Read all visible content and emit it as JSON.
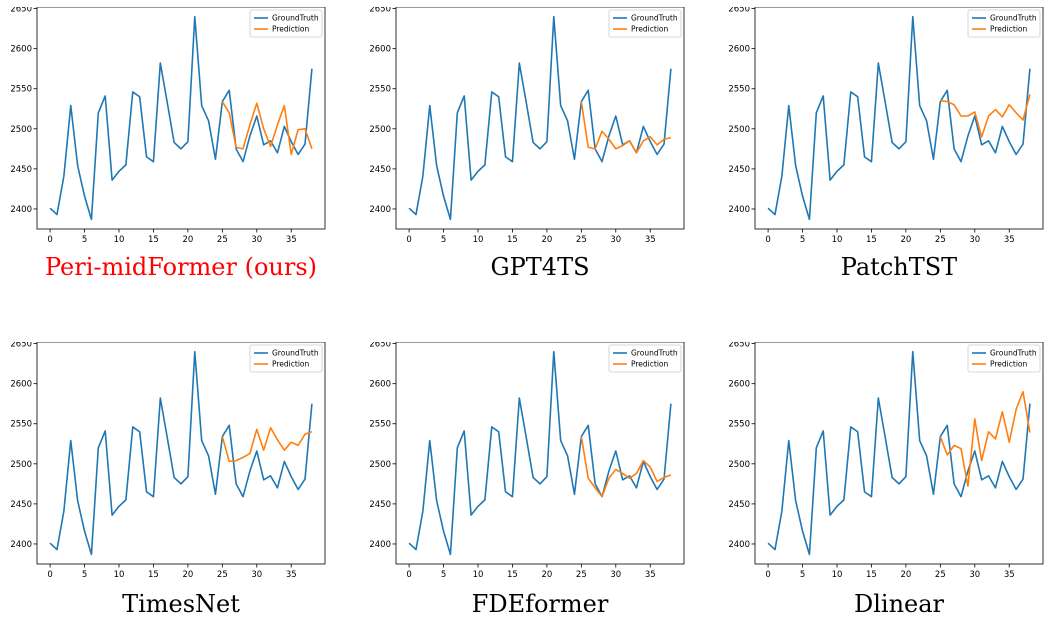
{
  "colors": {
    "ground_truth": "#1f77b4",
    "prediction": "#ff7f0e",
    "highlight_caption": "#ff0000",
    "caption": "#000000"
  },
  "chart_data": [
    {
      "type": "line",
      "title": "Peri-midFormer (ours)",
      "title_color": "#ff0000",
      "xticks": [
        0,
        5,
        10,
        15,
        20,
        25,
        30,
        35
      ],
      "yticks": [
        2400,
        2450,
        2500,
        2550,
        2600,
        2650
      ],
      "xlim": [
        -1.9,
        39.9
      ],
      "ylim": [
        2375,
        2652
      ],
      "grid": false,
      "legend": "top-right",
      "series": [
        {
          "name": "GroundTruth",
          "x": [
            0,
            1,
            2,
            3,
            4,
            5,
            6,
            7,
            8,
            9,
            10,
            11,
            12,
            13,
            14,
            15,
            16,
            17,
            18,
            19,
            20,
            21,
            22,
            23,
            24,
            25,
            26,
            27,
            28,
            29,
            30,
            31,
            32,
            33,
            34,
            35,
            36,
            37,
            38
          ],
          "y": [
            2401,
            2393,
            2441,
            2529,
            2454,
            2416,
            2387,
            2520,
            2541,
            2436,
            2447,
            2455,
            2546,
            2540,
            2465,
            2459,
            2582,
            2533,
            2483,
            2475,
            2484,
            2640,
            2529,
            2510,
            2462,
            2534,
            2548,
            2475,
            2459,
            2491,
            2516,
            2480,
            2485,
            2470,
            2503,
            2484,
            2468,
            2481,
            2575
          ]
        },
        {
          "name": "Prediction",
          "x": [
            25,
            26,
            27,
            28,
            29,
            30,
            31,
            32,
            33,
            34,
            35,
            36,
            37,
            38
          ],
          "y": [
            2534,
            2520,
            2477,
            2475,
            2505,
            2532,
            2500,
            2478,
            2505,
            2529,
            2468,
            2499,
            2500,
            2475
          ]
        }
      ]
    },
    {
      "type": "line",
      "title": "GPT4TS",
      "title_color": "#000000",
      "xticks": [
        0,
        5,
        10,
        15,
        20,
        25,
        30,
        35
      ],
      "yticks": [
        2400,
        2450,
        2500,
        2550,
        2600,
        2650
      ],
      "xlim": [
        -1.9,
        39.9
      ],
      "ylim": [
        2375,
        2652
      ],
      "grid": false,
      "legend": "top-right",
      "series": [
        {
          "name": "GroundTruth",
          "x": [
            0,
            1,
            2,
            3,
            4,
            5,
            6,
            7,
            8,
            9,
            10,
            11,
            12,
            13,
            14,
            15,
            16,
            17,
            18,
            19,
            20,
            21,
            22,
            23,
            24,
            25,
            26,
            27,
            28,
            29,
            30,
            31,
            32,
            33,
            34,
            35,
            36,
            37,
            38
          ],
          "y": [
            2401,
            2393,
            2441,
            2529,
            2454,
            2416,
            2387,
            2520,
            2541,
            2436,
            2447,
            2455,
            2546,
            2540,
            2465,
            2459,
            2582,
            2533,
            2483,
            2475,
            2484,
            2640,
            2529,
            2510,
            2462,
            2534,
            2548,
            2475,
            2459,
            2491,
            2516,
            2480,
            2485,
            2470,
            2503,
            2484,
            2468,
            2481,
            2575
          ]
        },
        {
          "name": "Prediction",
          "x": [
            25,
            26,
            27,
            28,
            29,
            30,
            31,
            32,
            33,
            34,
            35,
            36,
            37,
            38
          ],
          "y": [
            2534,
            2477,
            2475,
            2497,
            2487,
            2475,
            2479,
            2485,
            2470,
            2485,
            2490,
            2480,
            2487,
            2489
          ]
        }
      ]
    },
    {
      "type": "line",
      "title": "PatchTST",
      "title_color": "#000000",
      "xticks": [
        0,
        5,
        10,
        15,
        20,
        25,
        30,
        35
      ],
      "yticks": [
        2400,
        2450,
        2500,
        2550,
        2600,
        2650
      ],
      "xlim": [
        -1.9,
        39.9
      ],
      "ylim": [
        2375,
        2652
      ],
      "grid": false,
      "legend": "top-right",
      "series": [
        {
          "name": "GroundTruth",
          "x": [
            0,
            1,
            2,
            3,
            4,
            5,
            6,
            7,
            8,
            9,
            10,
            11,
            12,
            13,
            14,
            15,
            16,
            17,
            18,
            19,
            20,
            21,
            22,
            23,
            24,
            25,
            26,
            27,
            28,
            29,
            30,
            31,
            32,
            33,
            34,
            35,
            36,
            37,
            38
          ],
          "y": [
            2401,
            2393,
            2441,
            2529,
            2454,
            2416,
            2387,
            2520,
            2541,
            2436,
            2447,
            2455,
            2546,
            2540,
            2465,
            2459,
            2582,
            2533,
            2483,
            2475,
            2484,
            2640,
            2529,
            2510,
            2462,
            2534,
            2548,
            2475,
            2459,
            2491,
            2516,
            2480,
            2485,
            2470,
            2503,
            2484,
            2468,
            2481,
            2575
          ]
        },
        {
          "name": "Prediction",
          "x": [
            25,
            26,
            27,
            28,
            29,
            30,
            31,
            32,
            33,
            34,
            35,
            36,
            37,
            38
          ],
          "y": [
            2535,
            2534,
            2530,
            2516,
            2516,
            2521,
            2490,
            2516,
            2524,
            2515,
            2530,
            2520,
            2511,
            2543
          ]
        }
      ]
    },
    {
      "type": "line",
      "title": "TimesNet",
      "title_color": "#000000",
      "xticks": [
        0,
        5,
        10,
        15,
        20,
        25,
        30,
        35
      ],
      "yticks": [
        2400,
        2450,
        2500,
        2550,
        2600,
        2650
      ],
      "xlim": [
        -1.9,
        39.9
      ],
      "ylim": [
        2375,
        2652
      ],
      "grid": false,
      "legend": "top-right",
      "series": [
        {
          "name": "GroundTruth",
          "x": [
            0,
            1,
            2,
            3,
            4,
            5,
            6,
            7,
            8,
            9,
            10,
            11,
            12,
            13,
            14,
            15,
            16,
            17,
            18,
            19,
            20,
            21,
            22,
            23,
            24,
            25,
            26,
            27,
            28,
            29,
            30,
            31,
            32,
            33,
            34,
            35,
            36,
            37,
            38
          ],
          "y": [
            2401,
            2393,
            2441,
            2529,
            2454,
            2416,
            2387,
            2520,
            2541,
            2436,
            2447,
            2455,
            2546,
            2540,
            2465,
            2459,
            2582,
            2533,
            2483,
            2475,
            2484,
            2640,
            2529,
            2510,
            2462,
            2534,
            2548,
            2475,
            2459,
            2491,
            2516,
            2480,
            2485,
            2470,
            2503,
            2484,
            2468,
            2481,
            2575
          ]
        },
        {
          "name": "Prediction",
          "x": [
            25,
            26,
            27,
            28,
            29,
            30,
            31,
            32,
            33,
            34,
            35,
            36,
            37,
            38
          ],
          "y": [
            2534,
            2503,
            2504,
            2508,
            2513,
            2543,
            2517,
            2545,
            2530,
            2517,
            2527,
            2523,
            2537,
            2540
          ]
        }
      ]
    },
    {
      "type": "line",
      "title": "FDEformer",
      "title_color": "#000000",
      "xticks": [
        0,
        5,
        10,
        15,
        20,
        25,
        30,
        35
      ],
      "yticks": [
        2400,
        2450,
        2500,
        2550,
        2600,
        2650
      ],
      "xlim": [
        -1.9,
        39.9
      ],
      "ylim": [
        2375,
        2652
      ],
      "grid": false,
      "legend": "top-right",
      "series": [
        {
          "name": "GroundTruth",
          "x": [
            0,
            1,
            2,
            3,
            4,
            5,
            6,
            7,
            8,
            9,
            10,
            11,
            12,
            13,
            14,
            15,
            16,
            17,
            18,
            19,
            20,
            21,
            22,
            23,
            24,
            25,
            26,
            27,
            28,
            29,
            30,
            31,
            32,
            33,
            34,
            35,
            36,
            37,
            38
          ],
          "y": [
            2401,
            2393,
            2441,
            2529,
            2454,
            2416,
            2387,
            2520,
            2541,
            2436,
            2447,
            2455,
            2546,
            2540,
            2465,
            2459,
            2582,
            2533,
            2483,
            2475,
            2484,
            2640,
            2529,
            2510,
            2462,
            2534,
            2548,
            2475,
            2459,
            2491,
            2516,
            2480,
            2485,
            2470,
            2503,
            2484,
            2468,
            2481,
            2575
          ]
        },
        {
          "name": "Prediction",
          "x": [
            25,
            26,
            27,
            28,
            29,
            30,
            31,
            32,
            33,
            34,
            35,
            36,
            37,
            38
          ],
          "y": [
            2534,
            2482,
            2470,
            2459,
            2482,
            2493,
            2488,
            2482,
            2488,
            2504,
            2496,
            2478,
            2483,
            2486
          ]
        }
      ]
    },
    {
      "type": "line",
      "title": "Dlinear",
      "title_color": "#000000",
      "xticks": [
        0,
        5,
        10,
        15,
        20,
        25,
        30,
        35
      ],
      "yticks": [
        2400,
        2450,
        2500,
        2550,
        2600,
        2650
      ],
      "xlim": [
        -1.9,
        39.9
      ],
      "ylim": [
        2375,
        2652
      ],
      "grid": false,
      "legend": "top-right",
      "series": [
        {
          "name": "GroundTruth",
          "x": [
            0,
            1,
            2,
            3,
            4,
            5,
            6,
            7,
            8,
            9,
            10,
            11,
            12,
            13,
            14,
            15,
            16,
            17,
            18,
            19,
            20,
            21,
            22,
            23,
            24,
            25,
            26,
            27,
            28,
            29,
            30,
            31,
            32,
            33,
            34,
            35,
            36,
            37,
            38
          ],
          "y": [
            2401,
            2393,
            2441,
            2529,
            2454,
            2416,
            2387,
            2520,
            2541,
            2436,
            2447,
            2455,
            2546,
            2540,
            2465,
            2459,
            2582,
            2533,
            2483,
            2475,
            2484,
            2640,
            2529,
            2510,
            2462,
            2534,
            2548,
            2475,
            2459,
            2491,
            2516,
            2480,
            2485,
            2470,
            2503,
            2484,
            2468,
            2481,
            2575
          ]
        },
        {
          "name": "Prediction",
          "x": [
            25,
            26,
            27,
            28,
            29,
            30,
            31,
            32,
            33,
            34,
            35,
            36,
            37,
            38
          ],
          "y": [
            2534,
            2511,
            2523,
            2519,
            2472,
            2556,
            2504,
            2540,
            2531,
            2565,
            2527,
            2568,
            2590,
            2539
          ]
        }
      ]
    }
  ]
}
